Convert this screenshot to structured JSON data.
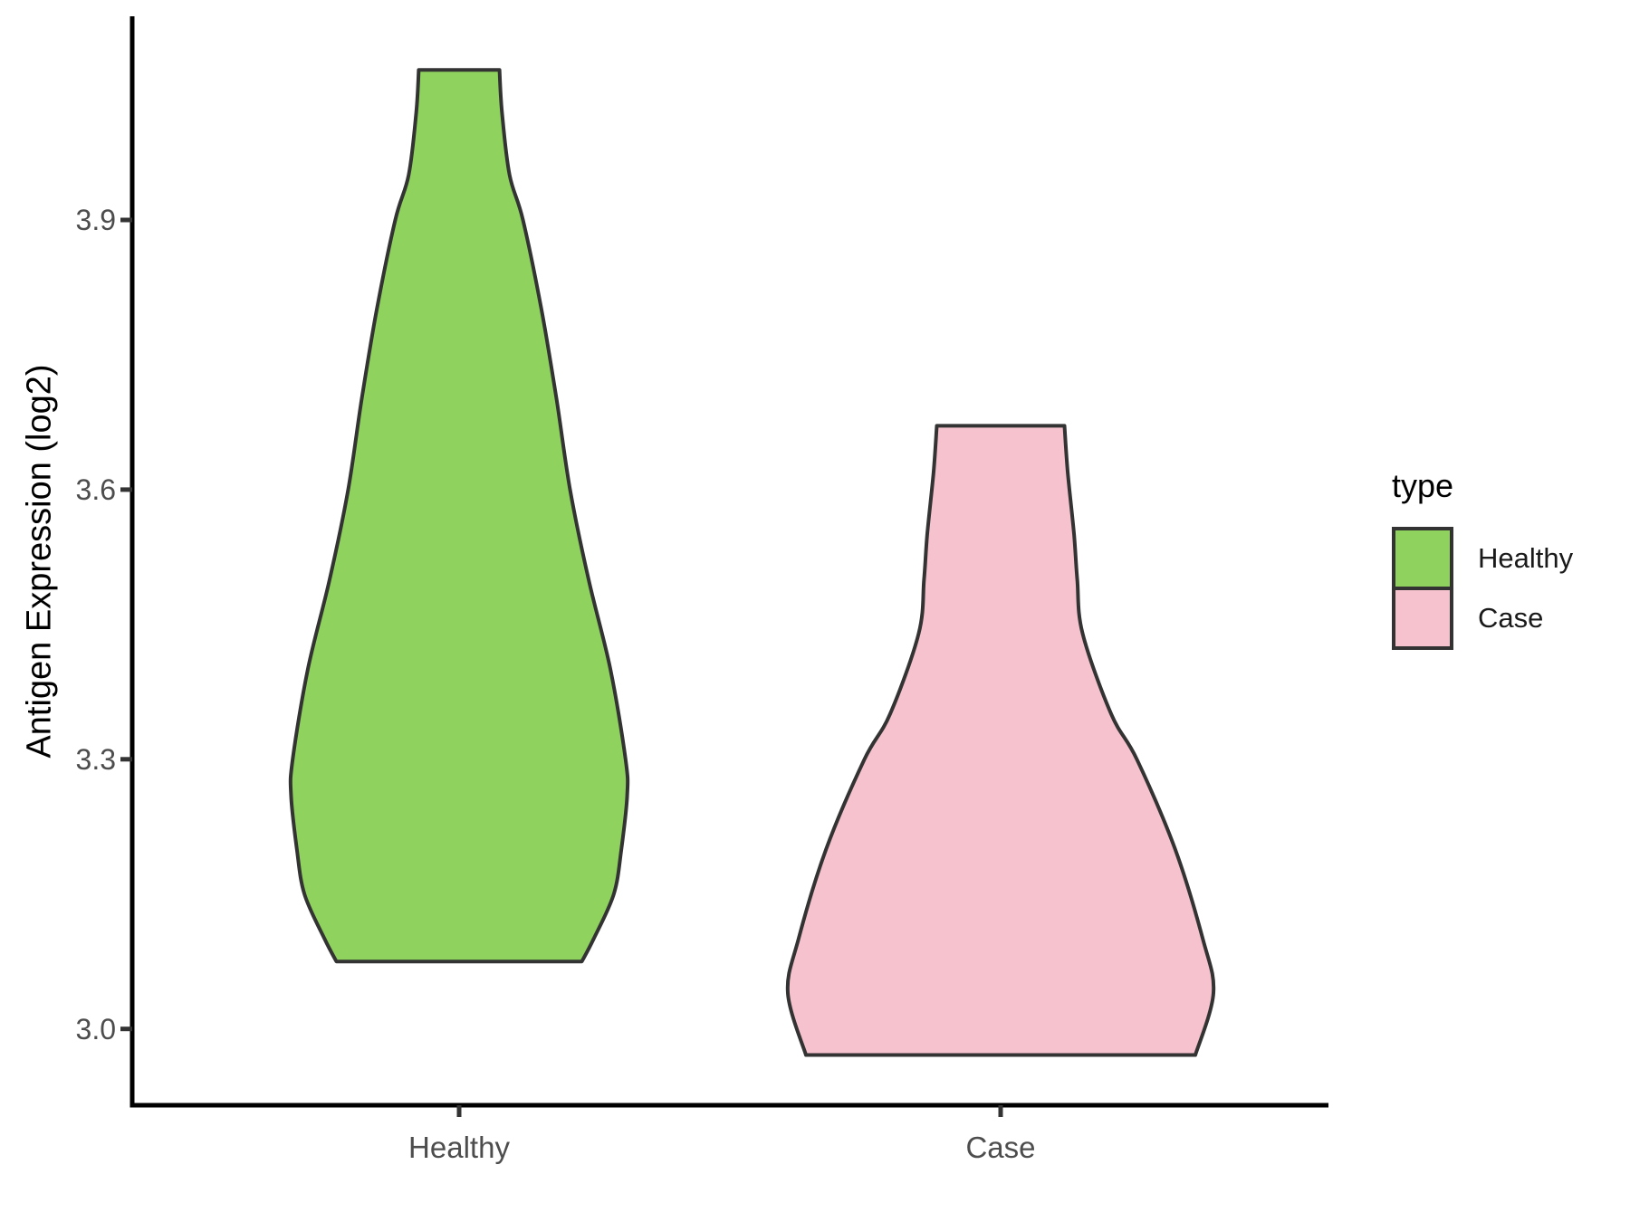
{
  "chart_data": {
    "type": "violin",
    "title": "",
    "xlabel": "",
    "ylabel": "Antigen Expression (log2)",
    "categories": [
      "Healthy",
      "Case"
    ],
    "y_ticks": [
      3.9,
      3.6,
      3.3,
      3.0
    ],
    "y_range_shown": [
      2.92,
      4.13
    ],
    "grid": "off",
    "legend": {
      "title": "type",
      "position": "right",
      "items": [
        {
          "label": "Healthy",
          "fill": "#8FD35E"
        },
        {
          "label": "Case",
          "fill": "#F6C2CD"
        }
      ]
    },
    "series": [
      {
        "name": "Healthy",
        "fill": "#8FD35E",
        "outline": "#333333",
        "min": 3.08,
        "max": 4.07,
        "peak_value": 3.26,
        "relative_max_width": 0.79,
        "profile": [
          [
            4.067,
            0.24
          ],
          [
            4.02,
            0.255
          ],
          [
            3.95,
            0.3
          ],
          [
            3.9,
            0.38
          ],
          [
            3.8,
            0.49
          ],
          [
            3.7,
            0.58
          ],
          [
            3.6,
            0.66
          ],
          [
            3.5,
            0.77
          ],
          [
            3.4,
            0.9
          ],
          [
            3.3,
            0.99
          ],
          [
            3.26,
            1.0
          ],
          [
            3.2,
            0.965
          ],
          [
            3.15,
            0.92
          ],
          [
            3.1,
            0.8
          ],
          [
            3.075,
            0.73
          ]
        ]
      },
      {
        "name": "Case",
        "fill": "#F6C2CD",
        "outline": "#333333",
        "min": 2.97,
        "max": 3.67,
        "peak_value": 3.04,
        "relative_max_width": 1.0,
        "profile": [
          [
            3.671,
            0.3
          ],
          [
            3.62,
            0.315
          ],
          [
            3.55,
            0.345
          ],
          [
            3.5,
            0.36
          ],
          [
            3.44,
            0.385
          ],
          [
            3.35,
            0.52
          ],
          [
            3.3,
            0.64
          ],
          [
            3.2,
            0.82
          ],
          [
            3.1,
            0.95
          ],
          [
            3.04,
            1.0
          ],
          [
            2.971,
            0.915
          ]
        ]
      }
    ],
    "axis_colors": {
      "line": "#000000",
      "tick": "#333333",
      "tick_label": "#4D4D4D",
      "axis_title": "#000000"
    }
  }
}
